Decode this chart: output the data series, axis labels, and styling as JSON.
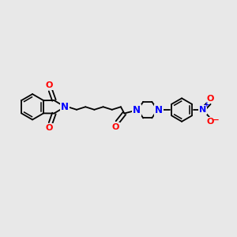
{
  "background_color": "#e8e8e8",
  "bond_color": "#000000",
  "nitrogen_color": "#0000ff",
  "oxygen_color": "#ff0000",
  "carbon_color": "#000000",
  "figsize": [
    3.0,
    3.0
  ],
  "dpi": 100,
  "xlim": [
    0,
    10
  ],
  "ylim": [
    0,
    10
  ]
}
